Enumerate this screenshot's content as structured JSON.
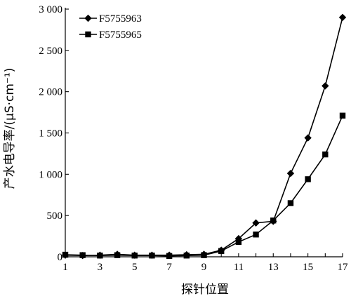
{
  "chart_data": {
    "type": "line",
    "title": "",
    "xlabel": "探针位置",
    "ylabel": "产水电导率/(μS·cm⁻¹)",
    "xlim": [
      1,
      17
    ],
    "ylim": [
      0,
      3000
    ],
    "x_ticks": [
      1,
      3,
      5,
      7,
      9,
      11,
      13,
      15,
      17
    ],
    "x_tick_labels": [
      "1",
      "3",
      "5",
      "7",
      "9",
      "11",
      "13",
      "15",
      "17"
    ],
    "y_ticks": [
      0,
      500,
      1000,
      1500,
      2000,
      2500,
      3000
    ],
    "y_tick_labels": [
      "0",
      "500",
      "1 000",
      "1 500",
      "2 000",
      "2 500",
      "3 000"
    ],
    "grid": false,
    "legend_position": "top-left",
    "x": [
      1,
      2,
      3,
      4,
      5,
      6,
      7,
      8,
      9,
      10,
      11,
      12,
      13,
      14,
      15,
      16,
      17
    ],
    "series": [
      {
        "name": "F5755963",
        "marker": "diamond",
        "values": [
          20,
          15,
          20,
          30,
          20,
          20,
          20,
          25,
          30,
          80,
          220,
          410,
          430,
          1010,
          1440,
          2070,
          2900
        ]
      },
      {
        "name": "F5755965",
        "marker": "square",
        "values": [
          25,
          20,
          15,
          20,
          15,
          15,
          10,
          15,
          20,
          70,
          180,
          270,
          440,
          650,
          940,
          1240,
          1710
        ]
      }
    ]
  }
}
